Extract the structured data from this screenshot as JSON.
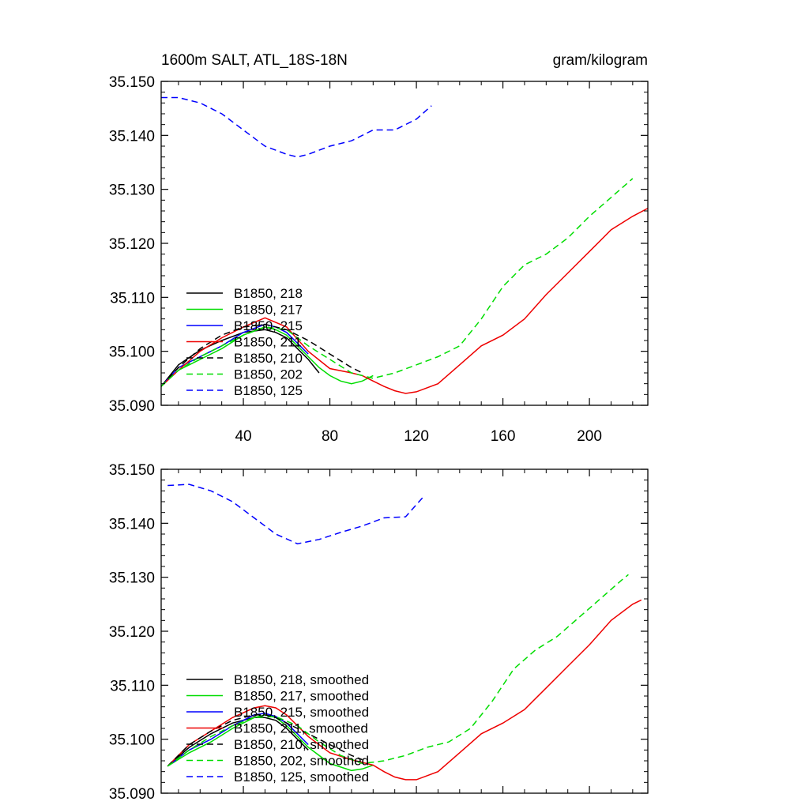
{
  "chart_data": [
    {
      "type": "line",
      "title": "1600m SALT, ATL_18S-18N",
      "units": "gram/kilogram",
      "xlim": [
        2,
        227
      ],
      "ylim": [
        35.09,
        35.15
      ],
      "xticks": [
        40,
        80,
        120,
        160,
        200
      ],
      "yticks": [
        35.09,
        35.1,
        35.11,
        35.12,
        35.13,
        35.14,
        35.15
      ],
      "ytick_labels": [
        "35.090",
        "35.100",
        "35.110",
        "35.120",
        "35.130",
        "35.140",
        "35.150"
      ],
      "series": [
        {
          "name": "B1850, 218",
          "color": "#000000",
          "dash": "solid",
          "x": [
            2,
            10,
            20,
            30,
            40,
            50,
            55,
            60,
            65,
            70,
            75
          ],
          "y": [
            35.0935,
            35.0975,
            35.1002,
            35.102,
            35.1035,
            35.104,
            35.1035,
            35.1025,
            35.1005,
            35.0985,
            35.096
          ]
        },
        {
          "name": "B1850, 217",
          "color": "#00dd00",
          "dash": "solid",
          "x": [
            2,
            10,
            20,
            30,
            40,
            50,
            55,
            60,
            65,
            70,
            75,
            80,
            85,
            90,
            95,
            100
          ],
          "y": [
            35.0935,
            35.0965,
            35.0985,
            35.1005,
            35.103,
            35.1045,
            35.104,
            35.103,
            35.101,
            35.099,
            35.097,
            35.0955,
            35.0945,
            35.094,
            35.0945,
            35.0955
          ]
        },
        {
          "name": "B1850, 215",
          "color": "#0000ff",
          "dash": "solid",
          "x": [
            2,
            10,
            20,
            30,
            40,
            50,
            55,
            60,
            65,
            70
          ],
          "y": [
            35.0935,
            35.097,
            35.099,
            35.101,
            35.1035,
            35.105,
            35.1045,
            35.1035,
            35.1015,
            35.0995
          ]
        },
        {
          "name": "B1850, 211",
          "color": "#ee0000",
          "dash": "solid",
          "x": [
            2,
            10,
            20,
            30,
            40,
            50,
            60,
            70,
            80,
            90,
            95,
            100,
            105,
            110,
            115,
            120,
            130,
            140,
            150,
            160,
            170,
            180,
            190,
            200,
            210,
            220,
            227
          ],
          "y": [
            35.0935,
            35.0965,
            35.1,
            35.1025,
            35.1045,
            35.1062,
            35.1045,
            35.1,
            35.0968,
            35.096,
            35.0955,
            35.0945,
            35.0935,
            35.0927,
            35.0922,
            35.0925,
            35.094,
            35.0975,
            35.101,
            35.103,
            35.106,
            35.1105,
            35.1145,
            35.1185,
            35.1225,
            35.125,
            35.1265
          ]
        },
        {
          "name": "B1850, 210",
          "color": "#000000",
          "dash": "dashed",
          "x": [
            2,
            10,
            20,
            30,
            40,
            50,
            60,
            70,
            80,
            90,
            95
          ],
          "y": [
            35.0935,
            35.097,
            35.1005,
            35.103,
            35.1045,
            35.105,
            35.104,
            35.102,
            35.0995,
            35.097,
            35.096
          ]
        },
        {
          "name": "B1850, 202",
          "color": "#00dd00",
          "dash": "dashed",
          "x": [
            2,
            10,
            20,
            30,
            40,
            50,
            60,
            70,
            80,
            90,
            100,
            110,
            120,
            130,
            140,
            150,
            160,
            170,
            180,
            190,
            200,
            210,
            220
          ],
          "y": [
            35.0935,
            35.0965,
            35.099,
            35.101,
            35.103,
            35.1045,
            35.104,
            35.101,
            35.0985,
            35.096,
            35.095,
            35.096,
            35.0975,
            35.099,
            35.101,
            35.106,
            35.112,
            35.116,
            35.118,
            35.121,
            35.125,
            35.1285,
            35.132
          ]
        },
        {
          "name": "B1850, 125",
          "color": "#0000ff",
          "dash": "dashed",
          "x": [
            2,
            10,
            20,
            30,
            40,
            50,
            60,
            65,
            70,
            80,
            90,
            100,
            110,
            120,
            127
          ],
          "y": [
            35.147,
            35.147,
            35.146,
            35.144,
            35.141,
            35.138,
            35.1365,
            35.136,
            35.1365,
            35.138,
            35.139,
            35.141,
            35.141,
            35.143,
            35.1455
          ]
        }
      ]
    },
    {
      "type": "line",
      "xlim": [
        2,
        227
      ],
      "ylim": [
        35.09,
        35.15
      ],
      "xticks": [
        40,
        80,
        120,
        160,
        200
      ],
      "yticks": [
        35.09,
        35.1,
        35.11,
        35.12,
        35.13,
        35.14,
        35.15
      ],
      "ytick_labels": [
        "35.090",
        "35.100",
        "35.110",
        "35.120",
        "35.130",
        "35.140",
        "35.150"
      ],
      "series": [
        {
          "name": "B1850, 218, smoothed",
          "color": "#000000",
          "dash": "solid",
          "x": [
            5,
            15,
            25,
            35,
            45,
            50,
            55,
            60,
            65,
            70
          ],
          "y": [
            35.095,
            35.0985,
            35.101,
            35.103,
            35.104,
            35.104,
            35.1035,
            35.102,
            35.1,
            35.098
          ]
        },
        {
          "name": "B1850, 217, smoothed",
          "color": "#00dd00",
          "dash": "solid",
          "x": [
            5,
            15,
            25,
            35,
            45,
            50,
            55,
            60,
            70,
            80,
            90,
            95,
            100
          ],
          "y": [
            35.095,
            35.0975,
            35.0995,
            35.102,
            35.104,
            35.1045,
            35.104,
            35.1025,
            35.0985,
            35.0955,
            35.0942,
            35.0945,
            35.0952
          ]
        },
        {
          "name": "B1850, 215, smoothed",
          "color": "#0000ff",
          "dash": "solid",
          "x": [
            5,
            15,
            25,
            35,
            45,
            50,
            55,
            60,
            65,
            70
          ],
          "y": [
            35.095,
            35.098,
            35.1,
            35.1025,
            35.1045,
            35.1048,
            35.1042,
            35.103,
            35.101,
            35.099
          ]
        },
        {
          "name": "B1850, 211, smoothed",
          "color": "#ee0000",
          "dash": "solid",
          "x": [
            5,
            15,
            25,
            35,
            45,
            50,
            55,
            60,
            70,
            80,
            90,
            100,
            105,
            110,
            115,
            120,
            130,
            140,
            150,
            160,
            170,
            180,
            190,
            200,
            210,
            220,
            224
          ],
          "y": [
            35.095,
            35.099,
            35.1015,
            35.104,
            35.1058,
            35.1062,
            35.1058,
            35.1045,
            35.1005,
            35.0975,
            35.0962,
            35.0952,
            35.094,
            35.093,
            35.0925,
            35.0925,
            35.094,
            35.0975,
            35.101,
            35.103,
            35.1055,
            35.1095,
            35.1135,
            35.1175,
            35.122,
            35.125,
            35.1258
          ]
        },
        {
          "name": "B1850, 210, smoothed",
          "color": "#000000",
          "dash": "dashed",
          "x": [
            5,
            15,
            25,
            35,
            45,
            50,
            55,
            60,
            70,
            80,
            90,
            95
          ],
          "y": [
            35.095,
            35.099,
            35.1015,
            35.1035,
            35.1045,
            35.1045,
            35.104,
            35.103,
            35.101,
            35.099,
            35.097,
            35.0962
          ]
        },
        {
          "name": "B1850, 202, smoothed",
          "color": "#00dd00",
          "dash": "dashed",
          "x": [
            5,
            15,
            25,
            35,
            45,
            55,
            65,
            75,
            85,
            95,
            105,
            115,
            125,
            135,
            145,
            155,
            165,
            175,
            185,
            195,
            205,
            215,
            218
          ],
          "y": [
            35.095,
            35.098,
            35.1005,
            35.1025,
            35.104,
            35.1042,
            35.1025,
            35.0995,
            35.097,
            35.0955,
            35.096,
            35.097,
            35.0985,
            35.0995,
            35.102,
            35.107,
            35.113,
            35.1165,
            35.119,
            35.1225,
            35.126,
            35.1295,
            35.1305
          ]
        },
        {
          "name": "B1850, 125, smoothed",
          "color": "#0000ff",
          "dash": "dashed",
          "x": [
            5,
            15,
            25,
            35,
            45,
            55,
            65,
            75,
            85,
            95,
            105,
            115,
            123
          ],
          "y": [
            35.147,
            35.1472,
            35.146,
            35.144,
            35.141,
            35.138,
            35.1362,
            35.137,
            35.1383,
            35.1395,
            35.141,
            35.1412,
            35.1448
          ]
        }
      ]
    }
  ]
}
